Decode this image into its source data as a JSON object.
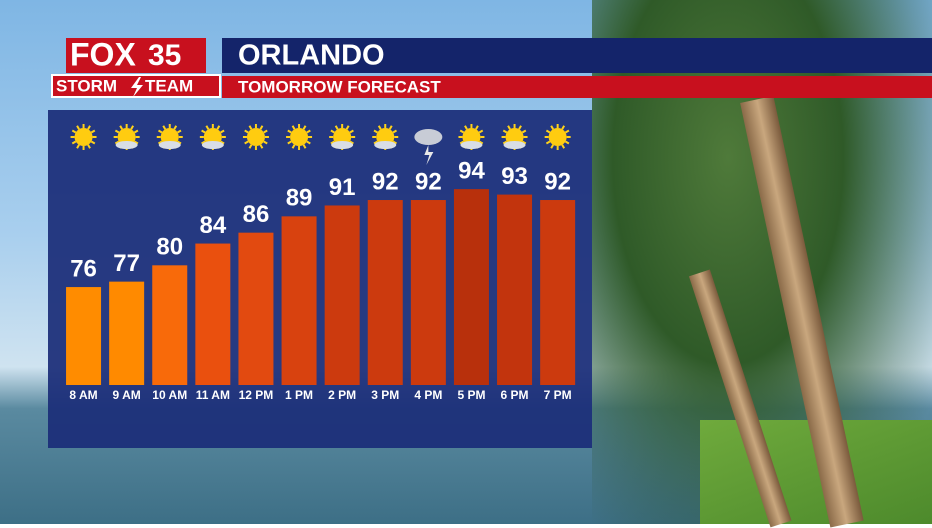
{
  "logo": {
    "brand": "FOX",
    "channel": "35",
    "team_left": "STORM",
    "team_right": "TEAM"
  },
  "chart_data": {
    "type": "bar",
    "title": "ORLANDO",
    "subtitle": "TOMORROW FORECAST",
    "categories": [
      "8 AM",
      "9 AM",
      "10 AM",
      "11 AM",
      "12 PM",
      "1 PM",
      "2 PM",
      "3 PM",
      "4 PM",
      "5 PM",
      "6 PM",
      "7 PM"
    ],
    "values": [
      76,
      77,
      80,
      84,
      86,
      89,
      91,
      92,
      92,
      94,
      93,
      92
    ],
    "colors": [
      "#ff8c00",
      "#ff8a00",
      "#f86a0a",
      "#ea500e",
      "#e24a10",
      "#d8420f",
      "#cc3a0e",
      "#cc3a0e",
      "#cc3a0e",
      "#b8300c",
      "#c2340d",
      "#cc3a0e"
    ],
    "ylim": [
      58,
      100
    ]
  }
}
